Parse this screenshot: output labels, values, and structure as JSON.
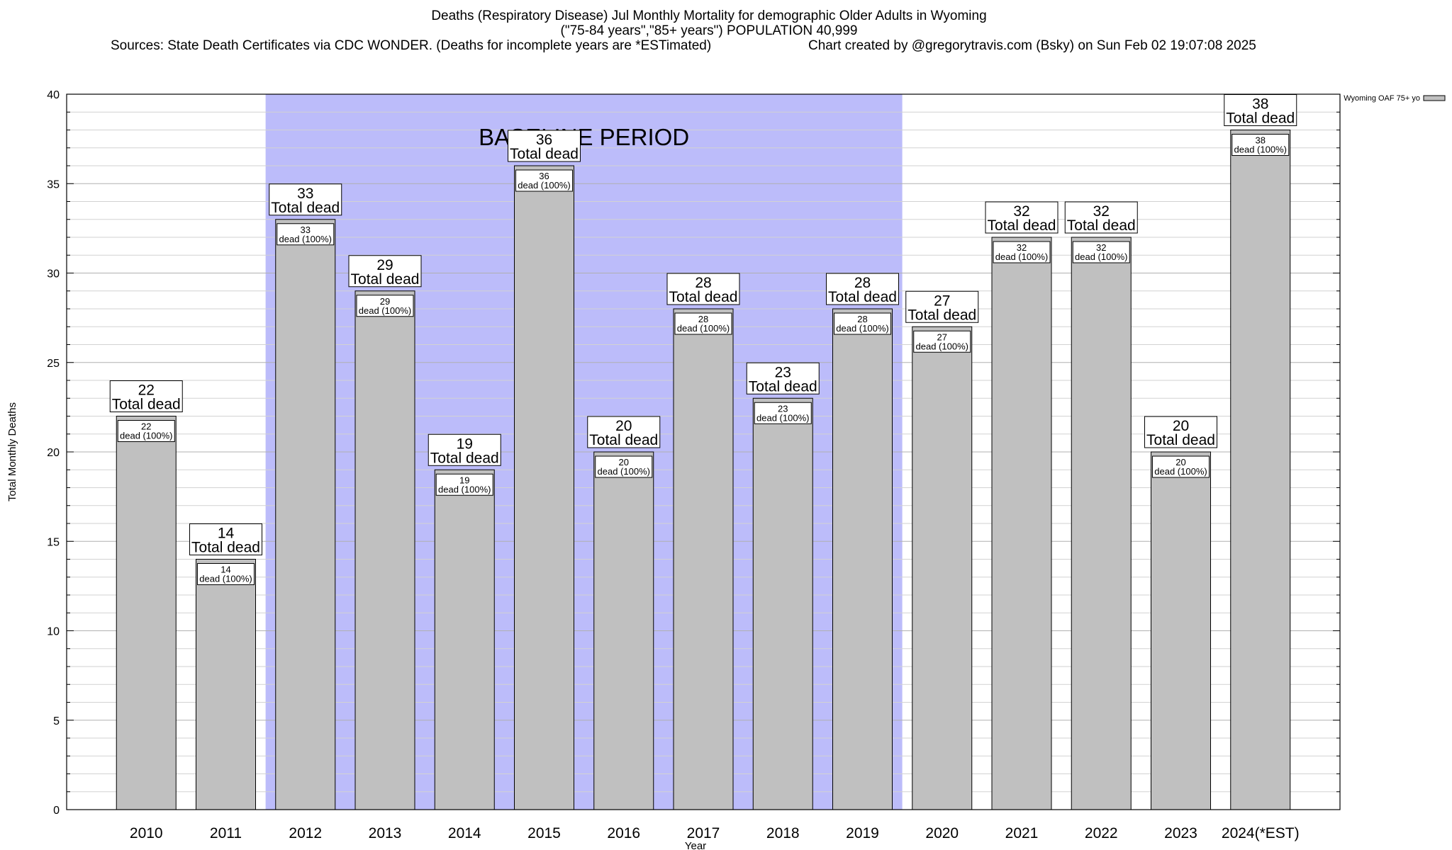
{
  "title": {
    "line1": "Deaths (Respiratory Disease) Jul Monthly Mortality for demographic Older Adults in Wyoming",
    "line2": "(\"75-84 years\",\"85+ years\") POPULATION 40,999",
    "sources": "Sources: State Death Certificates via CDC WONDER. (Deaths for incomplete years are *ESTimated)",
    "credit": "Chart created by @gregorytravis.com (Bsky) on Sun Feb 02 19:07:08 2025"
  },
  "chart_data": {
    "type": "bar",
    "xlabel": "Year",
    "ylabel": "Total Monthly Deaths",
    "ylim": [
      0,
      40
    ],
    "y_ticks": [
      0,
      5,
      10,
      15,
      20,
      25,
      30,
      35,
      40
    ],
    "y_minor_step": 1,
    "grid": true,
    "categories": [
      "2010",
      "2011",
      "2012",
      "2013",
      "2014",
      "2015",
      "2016",
      "2017",
      "2018",
      "2019",
      "2020",
      "2021",
      "2022",
      "2023",
      "2024(*EST)"
    ],
    "series": [
      {
        "name": "Wyoming OAF 75+ yo",
        "color": "#c0c0c0",
        "values": [
          22,
          14,
          33,
          29,
          19,
          36,
          20,
          28,
          23,
          28,
          27,
          32,
          32,
          20,
          38
        ]
      }
    ],
    "total_label_suffix": "Total dead",
    "inner_label_suffix": "dead (100%)",
    "baseline_period": {
      "label": "BASELINE PERIOD",
      "from": "2012",
      "to": "2019",
      "color": "#bcbcfa"
    },
    "legend_position": "top-right"
  }
}
